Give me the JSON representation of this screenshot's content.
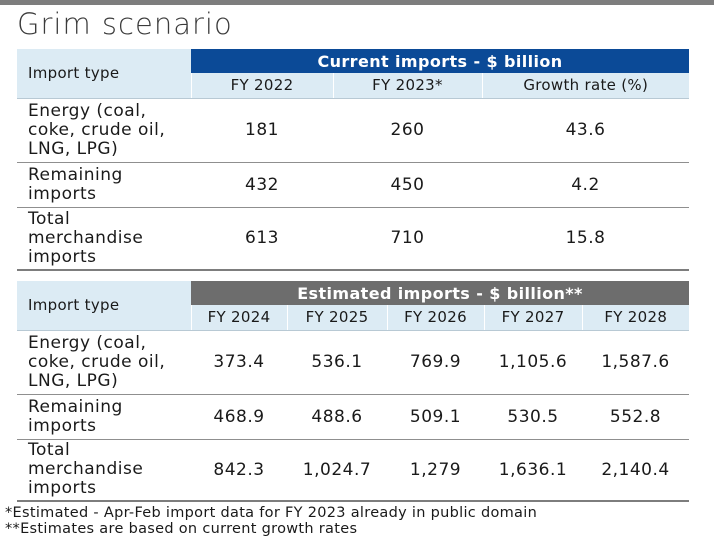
{
  "title": "Grim scenario",
  "import_type_label": "Import type",
  "current": {
    "banner": "Current imports - $ billion",
    "columns": [
      "FY 2022",
      "FY 2023*",
      "Growth rate (%)"
    ],
    "rows": [
      {
        "label": "Energy (coal, coke, crude oil, LNG, LPG)",
        "values": [
          "181",
          "260",
          "43.6"
        ]
      },
      {
        "label": "Remaining imports",
        "values": [
          "432",
          "450",
          "4.2"
        ]
      },
      {
        "label": "Total merchandise imports",
        "values": [
          "613",
          "710",
          "15.8"
        ]
      }
    ]
  },
  "estimated": {
    "banner": "Estimated imports - $ billion**",
    "columns": [
      "FY 2024",
      "FY 2025",
      "FY 2026",
      "FY 2027",
      "FY 2028"
    ],
    "rows": [
      {
        "label": "Energy (coal, coke, crude oil, LNG, LPG)",
        "values": [
          "373.4",
          "536.1",
          "769.9",
          "1,105.6",
          "1,587.6"
        ]
      },
      {
        "label": "Remaining imports",
        "values": [
          "468.9",
          "488.6",
          "509.1",
          "530.5",
          "552.8"
        ]
      },
      {
        "label": "Total merchandise imports",
        "values": [
          "842.3",
          "1,024.7",
          "1,279",
          "1,636.1",
          "2,140.4"
        ]
      }
    ]
  },
  "footnotes": [
    "*Estimated - Apr-Feb import data for FY 2023 already in public domain",
    "**Estimates are based on current growth rates"
  ],
  "colors": {
    "blue_banner": "#0b4a97",
    "grey_banner": "#6d6d6d",
    "header_bg": "#dcebf4"
  }
}
